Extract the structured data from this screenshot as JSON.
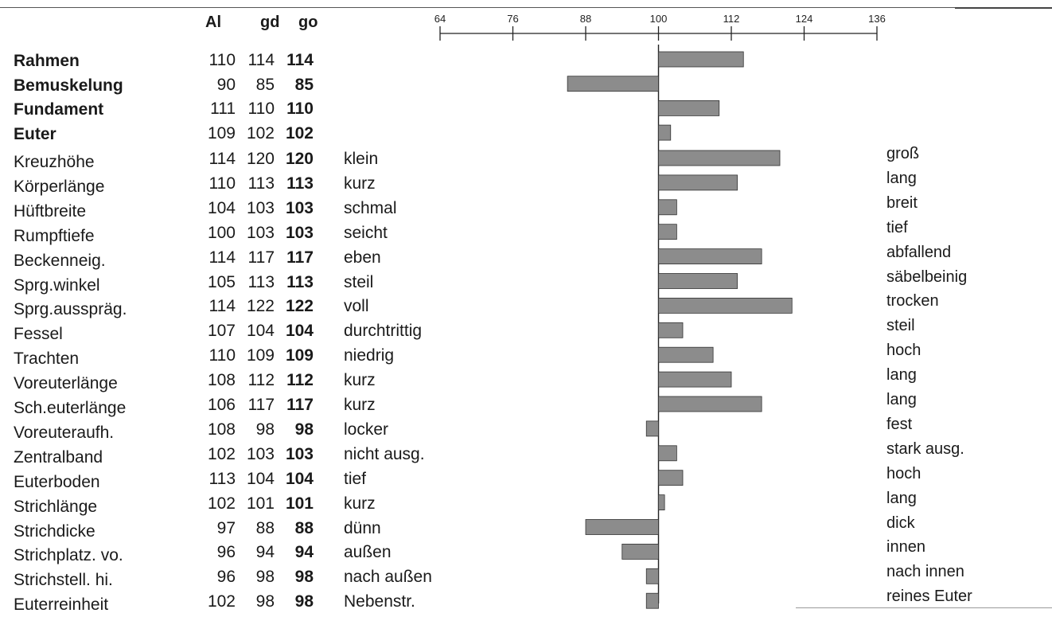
{
  "headers": {
    "al": "Al",
    "gd": "gd",
    "go": "go"
  },
  "rows": [
    {
      "label": "Rahmen",
      "al": "110",
      "gd": "114",
      "go": "114",
      "low": "",
      "high": ""
    },
    {
      "label": "Bemuskelung",
      "al": "90",
      "gd": "85",
      "go": "85",
      "low": "",
      "high": ""
    },
    {
      "label": "Fundament",
      "al": "111",
      "gd": "110",
      "go": "110",
      "low": "",
      "high": ""
    },
    {
      "label": "Euter",
      "al": "109",
      "gd": "102",
      "go": "102",
      "low": "",
      "high": ""
    },
    {
      "label": "Kreuzhöhe",
      "al": "114",
      "gd": "120",
      "go": "120",
      "low": "klein",
      "high": "groß"
    },
    {
      "label": "Körperlänge",
      "al": "110",
      "gd": "113",
      "go": "113",
      "low": "kurz",
      "high": "lang"
    },
    {
      "label": "Hüftbreite",
      "al": "104",
      "gd": "103",
      "go": "103",
      "low": "schmal",
      "high": "breit"
    },
    {
      "label": "Rumpftiefe",
      "al": "100",
      "gd": "103",
      "go": "103",
      "low": "seicht",
      "high": "tief"
    },
    {
      "label": "Beckenneig.",
      "al": "114",
      "gd": "117",
      "go": "117",
      "low": "eben",
      "high": "abfallend"
    },
    {
      "label": "Sprg.winkel",
      "al": "105",
      "gd": "113",
      "go": "113",
      "low": "steil",
      "high": "säbelbeinig"
    },
    {
      "label": "Sprg.ausspräg.",
      "al": "114",
      "gd": "122",
      "go": "122",
      "low": "voll",
      "high": "trocken"
    },
    {
      "label": "Fessel",
      "al": "107",
      "gd": "104",
      "go": "104",
      "low": "durchtrittig",
      "high": "steil"
    },
    {
      "label": "Trachten",
      "al": "110",
      "gd": "109",
      "go": "109",
      "low": "niedrig",
      "high": "hoch"
    },
    {
      "label": "Voreuterlänge",
      "al": "108",
      "gd": "112",
      "go": "112",
      "low": "kurz",
      "high": "lang"
    },
    {
      "label": "Sch.euterlänge",
      "al": "106",
      "gd": "117",
      "go": "117",
      "low": "kurz",
      "high": "lang"
    },
    {
      "label": "Voreuteraufh.",
      "al": "108",
      "gd": "98",
      "go": "98",
      "low": "locker",
      "high": "fest"
    },
    {
      "label": "Zentralband",
      "al": "102",
      "gd": "103",
      "go": "103",
      "low": "nicht ausg.",
      "high": "stark ausg."
    },
    {
      "label": "Euterboden",
      "al": "113",
      "gd": "104",
      "go": "104",
      "low": "tief",
      "high": "hoch"
    },
    {
      "label": "Strichlänge",
      "al": "102",
      "gd": "101",
      "go": "101",
      "low": "kurz",
      "high": "lang"
    },
    {
      "label": "Strichdicke",
      "al": "97",
      "gd": "88",
      "go": "88",
      "low": "dünn",
      "high": "dick"
    },
    {
      "label": "Strichplatz. vo.",
      "al": "96",
      "gd": "94",
      "go": "94",
      "low": "außen",
      "high": "innen"
    },
    {
      "label": "Strichstell. hi.",
      "al": "96",
      "gd": "98",
      "go": "98",
      "low": "nach außen",
      "high": "nach innen"
    },
    {
      "label": "Euterreinheit",
      "al": "102",
      "gd": "98",
      "go": "98",
      "low": "Nebenstr.",
      "high": "reines Euter"
    }
  ],
  "chart_data": {
    "type": "bar",
    "orientation": "horizontal",
    "baseline": 100,
    "xlim": [
      64,
      136
    ],
    "ticks": [
      "64",
      "76",
      "88",
      "100",
      "112",
      "124",
      "136"
    ],
    "bar_color": "#8c8c8c",
    "categories": [
      "Rahmen",
      "Bemuskelung",
      "Fundament",
      "Euter",
      "Kreuzhöhe",
      "Körperlänge",
      "Hüftbreite",
      "Rumpftiefe",
      "Beckenneig.",
      "Sprg.winkel",
      "Sprg.ausspräg.",
      "Fessel",
      "Trachten",
      "Voreuterlänge",
      "Sch.euterlänge",
      "Voreuteraufh.",
      "Zentralband",
      "Euterboden",
      "Strichlänge",
      "Strichdicke",
      "Strichplatz. vo.",
      "Strichstell. hi.",
      "Euterreinheit"
    ],
    "values": [
      114,
      85,
      110,
      102,
      120,
      113,
      103,
      103,
      117,
      113,
      122,
      104,
      109,
      112,
      117,
      98,
      103,
      104,
      101,
      88,
      94,
      98,
      98
    ]
  }
}
